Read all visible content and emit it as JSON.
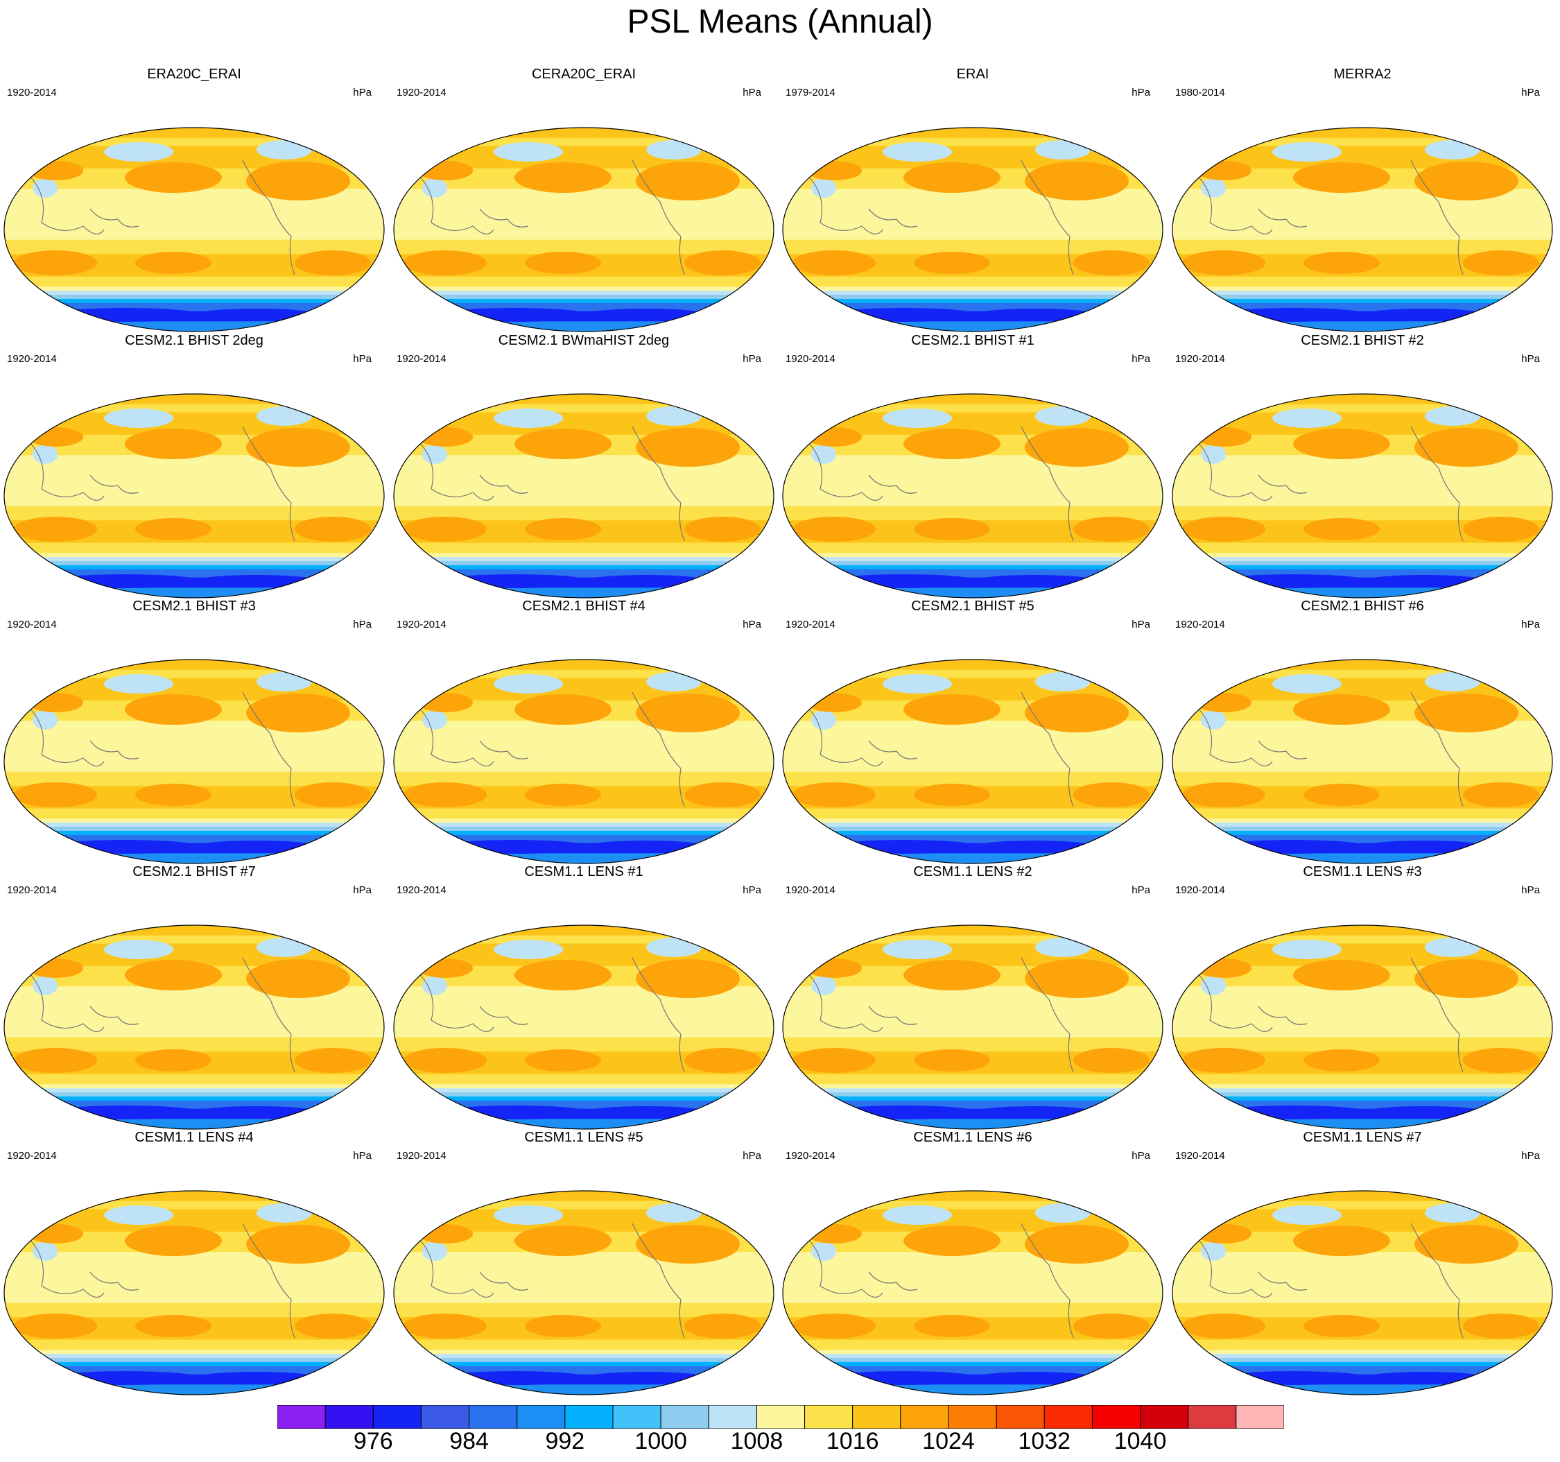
{
  "title": "PSL Means (Annual)",
  "panels": [
    {
      "title": "ERA20C_ERAI",
      "period": "1920-2014",
      "units": "hPa"
    },
    {
      "title": "CERA20C_ERAI",
      "period": "1920-2014",
      "units": "hPa"
    },
    {
      "title": "ERAI",
      "period": "1979-2014",
      "units": "hPa"
    },
    {
      "title": "MERRA2",
      "period": "1980-2014",
      "units": "hPa"
    },
    {
      "title": "CESM2.1 BHIST 2deg",
      "period": "1920-2014",
      "units": "hPa"
    },
    {
      "title": "CESM2.1 BWmaHIST 2deg",
      "period": "1920-2014",
      "units": "hPa"
    },
    {
      "title": "CESM2.1 BHIST #1",
      "period": "1920-2014",
      "units": "hPa"
    },
    {
      "title": "CESM2.1 BHIST #2",
      "period": "1920-2014",
      "units": "hPa"
    },
    {
      "title": "CESM2.1 BHIST #3",
      "period": "1920-2014",
      "units": "hPa"
    },
    {
      "title": "CESM2.1 BHIST #4",
      "period": "1920-2014",
      "units": "hPa"
    },
    {
      "title": "CESM2.1 BHIST #5",
      "period": "1920-2014",
      "units": "hPa"
    },
    {
      "title": "CESM2.1 BHIST #6",
      "period": "1920-2014",
      "units": "hPa"
    },
    {
      "title": "CESM2.1 BHIST #7",
      "period": "1920-2014",
      "units": "hPa"
    },
    {
      "title": "CESM1.1 LENS #1",
      "period": "1920-2014",
      "units": "hPa"
    },
    {
      "title": "CESM1.1 LENS #2",
      "period": "1920-2014",
      "units": "hPa"
    },
    {
      "title": "CESM1.1 LENS #3",
      "period": "1920-2014",
      "units": "hPa"
    },
    {
      "title": "CESM1.1 LENS #4",
      "period": "1920-2014",
      "units": "hPa"
    },
    {
      "title": "CESM1.1 LENS #5",
      "period": "1920-2014",
      "units": "hPa"
    },
    {
      "title": "CESM1.1 LENS #6",
      "period": "1920-2014",
      "units": "hPa"
    },
    {
      "title": "CESM1.1 LENS #7",
      "period": "1920-2014",
      "units": "hPa"
    }
  ],
  "colorbar": {
    "colors": [
      "#8a21f2",
      "#3311f2",
      "#1424f6",
      "#3b5be6",
      "#2a72ee",
      "#1d8ff4",
      "#02b0fc",
      "#41c3f9",
      "#8ecdf0",
      "#bfe3f6",
      "#fcf69c",
      "#fde14a",
      "#fcc418",
      "#fda40a",
      "#fd7e05",
      "#fd5506",
      "#fc2a03",
      "#f70001",
      "#d40009",
      "#dd3b3f",
      "#fdb5b5"
    ],
    "labels": [
      "976",
      "984",
      "992",
      "1000",
      "1008",
      "1016",
      "1024",
      "1032",
      "1040"
    ]
  }
}
